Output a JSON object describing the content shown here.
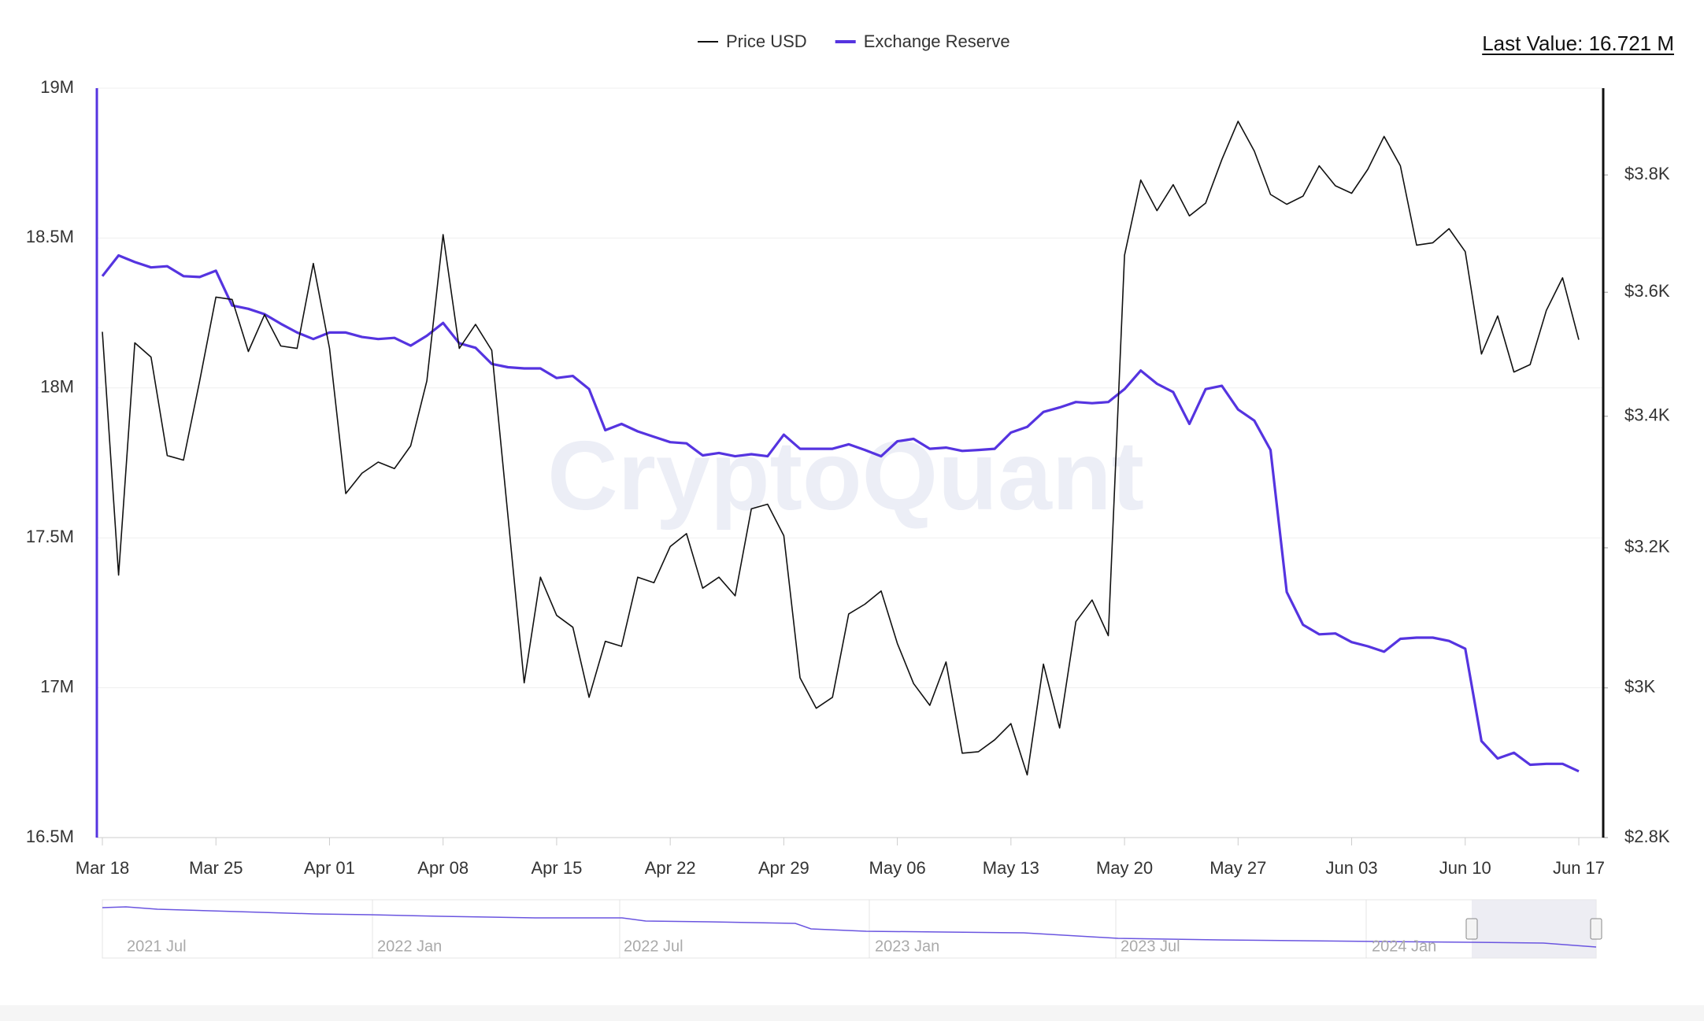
{
  "chart_data": {
    "type": "line",
    "last_value": "Last Value: 16.721 M",
    "watermark": "CryptoQuant",
    "categories": [
      "Mar 18",
      null,
      null,
      null,
      null,
      null,
      null,
      "Mar 25",
      null,
      null,
      null,
      null,
      null,
      null,
      "Apr 01",
      null,
      null,
      null,
      null,
      null,
      null,
      "Apr 08",
      null,
      null,
      null,
      null,
      null,
      null,
      "Apr 15",
      null,
      null,
      null,
      null,
      null,
      null,
      "Apr 22",
      null,
      null,
      null,
      null,
      null,
      null,
      "Apr 29",
      null,
      null,
      null,
      null,
      null,
      null,
      "May 06",
      null,
      null,
      null,
      null,
      null,
      null,
      "May 13",
      null,
      null,
      null,
      null,
      null,
      null,
      "May 20",
      null,
      null,
      null,
      null,
      null,
      null,
      "May 27",
      null,
      null,
      null,
      null,
      null,
      null,
      "Jun 03",
      null,
      null,
      null,
      null,
      null,
      null,
      "Jun 10",
      null,
      null,
      null,
      null,
      null,
      null,
      "Jun 17"
    ],
    "series": [
      {
        "name": "Price USD",
        "color": "#111111",
        "axis": "y2",
        "values": [
          3535,
          3160,
          3517,
          3494,
          3339,
          3332,
          3456,
          3592,
          3588,
          3503,
          3563,
          3512,
          3508,
          3648,
          3508,
          3281,
          3312,
          3329,
          3319,
          3354,
          3456,
          3697,
          3508,
          3547,
          3505,
          3247,
          3007,
          3157,
          3102,
          3085,
          2987,
          3065,
          3058,
          3157,
          3149,
          3202,
          3221,
          3141,
          3157,
          3130,
          3258,
          3265,
          3218,
          3014,
          2972,
          2987,
          3104,
          3118,
          3137,
          3062,
          3006,
          2976,
          3036,
          2911,
          2913,
          2929,
          2951,
          2882,
          3033,
          2945,
          3093,
          3124,
          3073,
          3662,
          3791,
          3738,
          3783,
          3729,
          3751,
          3827,
          3895,
          3842,
          3766,
          3749,
          3763,
          3816,
          3781,
          3768,
          3810,
          3868,
          3816,
          3679,
          3683,
          3707,
          3668,
          3499,
          3561,
          3470,
          3482,
          3570,
          3624,
          3522
        ]
      },
      {
        "name": "Exchange Reserve",
        "color": "#5534e0",
        "values": [
          18.373,
          18.442,
          18.42,
          18.402,
          18.406,
          18.373,
          18.37,
          18.391,
          18.275,
          18.264,
          18.246,
          18.214,
          18.185,
          18.163,
          18.185,
          18.185,
          18.17,
          18.163,
          18.167,
          18.141,
          18.174,
          18.217,
          18.149,
          18.134,
          18.08,
          18.069,
          18.065,
          18.065,
          18.033,
          18.04,
          17.996,
          17.859,
          17.88,
          17.855,
          17.837,
          17.819,
          17.815,
          17.775,
          17.783,
          17.772,
          17.779,
          17.772,
          17.844,
          17.797,
          17.797,
          17.797,
          17.812,
          17.793,
          17.772,
          17.822,
          17.83,
          17.797,
          17.801,
          17.79,
          17.793,
          17.797,
          17.851,
          17.87,
          17.92,
          17.935,
          17.953,
          17.949,
          17.953,
          17.996,
          18.058,
          18.014,
          17.986,
          17.88,
          17.996,
          18.007,
          17.928,
          17.891,
          17.793,
          17.319,
          17.21,
          17.178,
          17.181,
          17.152,
          17.138,
          17.12,
          17.163,
          17.167,
          17.167,
          17.156,
          17.13,
          16.822,
          16.764,
          16.783,
          16.743,
          16.746,
          16.746,
          16.721
        ]
      }
    ],
    "ylim": [
      16.5,
      19
    ],
    "yticks": [
      {
        "value": 16.5,
        "label": "16.5M"
      },
      {
        "value": 17,
        "label": "17M"
      },
      {
        "value": 17.5,
        "label": "17.5M"
      },
      {
        "value": 18,
        "label": "18M"
      },
      {
        "value": 18.5,
        "label": "18.5M"
      },
      {
        "value": 19,
        "label": "19M"
      }
    ],
    "y2lim": [
      2800,
      3955
    ],
    "y2_log": true,
    "y2ticks": [
      {
        "value": 2800,
        "label": "$2.8K"
      },
      {
        "value": 3000,
        "label": "$3K"
      },
      {
        "value": 3200,
        "label": "$3.2K"
      },
      {
        "value": 3400,
        "label": "$3.4K"
      },
      {
        "value": 3600,
        "label": "$3.6K"
      },
      {
        "value": 3800,
        "label": "$3.8K"
      }
    ],
    "grid": true,
    "navigator_labels": [
      "2021 Jul",
      "2022 Jan",
      "2022 Jul",
      "2023 Jan",
      "2023 Jul",
      "2024 Jan"
    ]
  }
}
